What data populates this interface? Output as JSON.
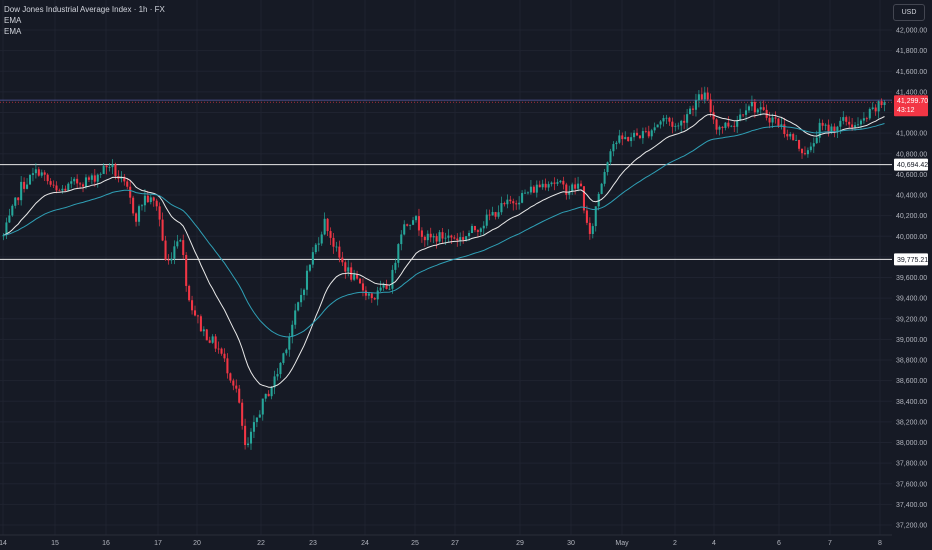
{
  "header": {
    "title": "Dow Jones Industrial Average Index · 1h · FX",
    "indicator_1": "EMA",
    "indicator_2": "EMA",
    "currency": "USD"
  },
  "chart_data": {
    "type": "candlestick",
    "symbol": "Dow Jones Industrial Average Index",
    "interval": "1h",
    "source": "FX",
    "ylim": [
      37100,
      42200
    ],
    "y_ticks": [
      "42,000.00",
      "41,800.00",
      "41,600.00",
      "41,400.00",
      "41,200.00",
      "41,000.00",
      "40,800.00",
      "40,600.00",
      "40,400.00",
      "40,200.00",
      "40,000.00",
      "39,800.00",
      "39,600.00",
      "39,400.00",
      "39,200.00",
      "39,000.00",
      "38,800.00",
      "38,600.00",
      "38,400.00",
      "38,200.00",
      "38,000.00",
      "37,800.00",
      "37,600.00",
      "37,400.00",
      "37,200.00"
    ],
    "x_ticks": [
      "14",
      "15",
      "16",
      "17",
      "20",
      "22",
      "23",
      "24",
      "25",
      "27",
      "29",
      "30",
      "May",
      "2",
      "4",
      "6",
      "7",
      "8"
    ],
    "horizontal_levels": [
      {
        "value": 41320,
        "style": "thin-blue"
      },
      {
        "value": 40694.42,
        "label": "40,694.42"
      },
      {
        "value": 39775.21,
        "label": "39,775.21"
      }
    ],
    "last_price": {
      "value": 41299.7,
      "label": "41,299.70",
      "countdown": "43:12",
      "color": "#f23645"
    },
    "colors": {
      "up": "#26a69a",
      "down": "#f23645",
      "ema_fast": "#e8e8e8",
      "ema_slow": "#2f9fb5"
    },
    "close_path": [
      [
        0,
        40000
      ],
      [
        0.02,
        40480
      ],
      [
        0.04,
        40640
      ],
      [
        0.06,
        40420
      ],
      [
        0.085,
        40530
      ],
      [
        0.1,
        40550
      ],
      [
        0.12,
        40700
      ],
      [
        0.14,
        40450
      ],
      [
        0.15,
        40180
      ],
      [
        0.16,
        40380
      ],
      [
        0.175,
        40300
      ],
      [
        0.185,
        39700
      ],
      [
        0.2,
        40050
      ],
      [
        0.21,
        39400
      ],
      [
        0.225,
        39100
      ],
      [
        0.245,
        38900
      ],
      [
        0.265,
        38500
      ],
      [
        0.275,
        37900
      ],
      [
        0.29,
        38300
      ],
      [
        0.31,
        38650
      ],
      [
        0.33,
        39200
      ],
      [
        0.35,
        39800
      ],
      [
        0.365,
        40150
      ],
      [
        0.38,
        39800
      ],
      [
        0.4,
        39550
      ],
      [
        0.42,
        39400
      ],
      [
        0.44,
        39550
      ],
      [
        0.45,
        40050
      ],
      [
        0.465,
        40200
      ],
      [
        0.48,
        39970
      ],
      [
        0.5,
        40000
      ],
      [
        0.52,
        39980
      ],
      [
        0.54,
        40100
      ],
      [
        0.56,
        40250
      ],
      [
        0.58,
        40350
      ],
      [
        0.6,
        40450
      ],
      [
        0.62,
        40550
      ],
      [
        0.64,
        40450
      ],
      [
        0.655,
        40500
      ],
      [
        0.665,
        39950
      ],
      [
        0.675,
        40400
      ],
      [
        0.69,
        40900
      ],
      [
        0.71,
        40960
      ],
      [
        0.73,
        41000
      ],
      [
        0.75,
        41150
      ],
      [
        0.765,
        41050
      ],
      [
        0.78,
        41250
      ],
      [
        0.795,
        41380
      ],
      [
        0.81,
        41060
      ],
      [
        0.83,
        41100
      ],
      [
        0.845,
        41300
      ],
      [
        0.86,
        41200
      ],
      [
        0.875,
        41130
      ],
      [
        0.89,
        41000
      ],
      [
        0.905,
        40850
      ],
      [
        0.915,
        40800
      ],
      [
        0.925,
        41050
      ],
      [
        0.94,
        41040
      ],
      [
        0.955,
        41120
      ],
      [
        0.97,
        41060
      ],
      [
        0.985,
        41200
      ],
      [
        1.0,
        41300
      ]
    ]
  }
}
